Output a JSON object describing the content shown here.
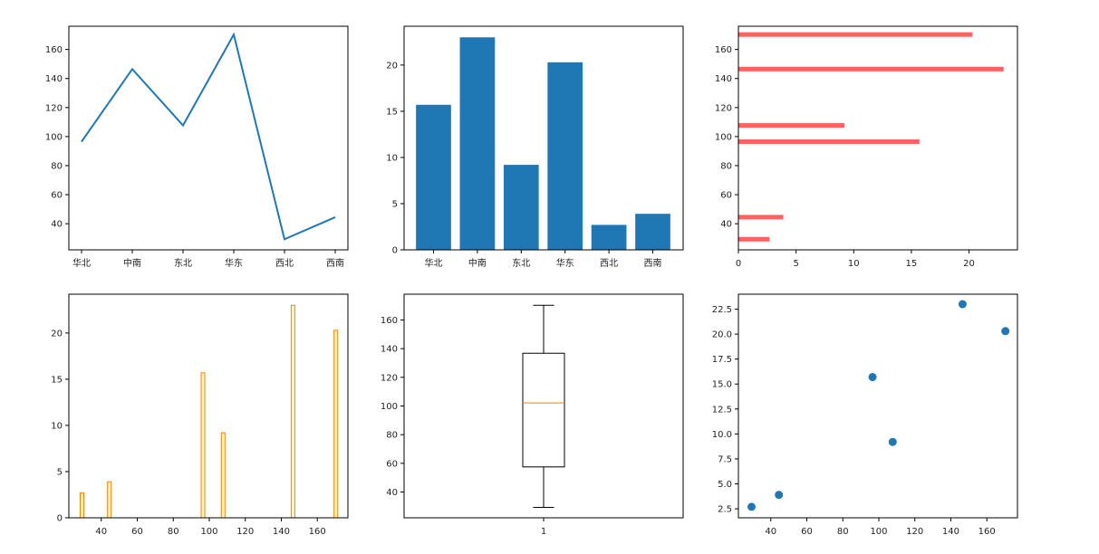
{
  "chart_data": [
    {
      "type": "line",
      "categories": [
        "华北",
        "中南",
        "东北",
        "华东",
        "西北",
        "西南"
      ],
      "values": [
        96.5,
        146.5,
        107.7,
        170.3,
        29.3,
        44.5
      ],
      "ylim": [
        22,
        176
      ],
      "yticks": [
        40,
        60,
        80,
        100,
        120,
        140,
        160
      ],
      "color": "#1f77b4"
    },
    {
      "type": "bar",
      "categories": [
        "华北",
        "中南",
        "东北",
        "华东",
        "西北",
        "西南"
      ],
      "values": [
        15.7,
        23.0,
        9.2,
        20.3,
        2.7,
        3.9
      ],
      "ylim": [
        0,
        24.2
      ],
      "yticks": [
        0,
        5,
        10,
        15,
        20
      ],
      "color": "#1f77b4"
    },
    {
      "type": "barh",
      "y": [
        96.5,
        146.5,
        107.7,
        170.3,
        29.3,
        44.5
      ],
      "values": [
        15.7,
        23.0,
        9.2,
        20.3,
        2.7,
        3.9
      ],
      "xlim": [
        0,
        24.2
      ],
      "ylim": [
        22,
        176
      ],
      "xticks": [
        0,
        5,
        10,
        15,
        20
      ],
      "yticks": [
        40,
        60,
        80,
        100,
        120,
        140,
        160
      ],
      "color": "#ff6060"
    },
    {
      "type": "bar",
      "x": [
        96.5,
        146.5,
        107.7,
        170.3,
        29.3,
        44.5
      ],
      "values": [
        15.7,
        23.0,
        9.2,
        20.3,
        2.7,
        3.9
      ],
      "xlim": [
        22,
        177
      ],
      "ylim": [
        0,
        24.2
      ],
      "xticks": [
        40,
        60,
        80,
        100,
        120,
        140,
        160
      ],
      "yticks": [
        0,
        5,
        10,
        15,
        20
      ],
      "fill": "#fff8c2",
      "edge": "#ff7f0e"
    },
    {
      "type": "box",
      "categories": [
        "1"
      ],
      "whisker_low": 29.3,
      "q1": 57.5,
      "median": 102.1,
      "q3": 136.8,
      "whisker_high": 170.3,
      "ylim": [
        22,
        178
      ],
      "yticks": [
        40,
        60,
        80,
        100,
        120,
        140,
        160
      ],
      "median_color": "#ff7f0e"
    },
    {
      "type": "scatter",
      "x": [
        96.5,
        146.5,
        107.7,
        170.3,
        29.3,
        44.5
      ],
      "y": [
        15.7,
        23.0,
        9.2,
        20.3,
        2.7,
        3.9
      ],
      "xlim": [
        22,
        177
      ],
      "ylim": [
        1.6,
        24.0
      ],
      "xticks": [
        40,
        60,
        80,
        100,
        120,
        140,
        160
      ],
      "yticks": [
        2.5,
        5.0,
        7.5,
        10.0,
        12.5,
        15.0,
        17.5,
        20.0,
        22.5
      ],
      "color": "#1f77b4"
    }
  ]
}
